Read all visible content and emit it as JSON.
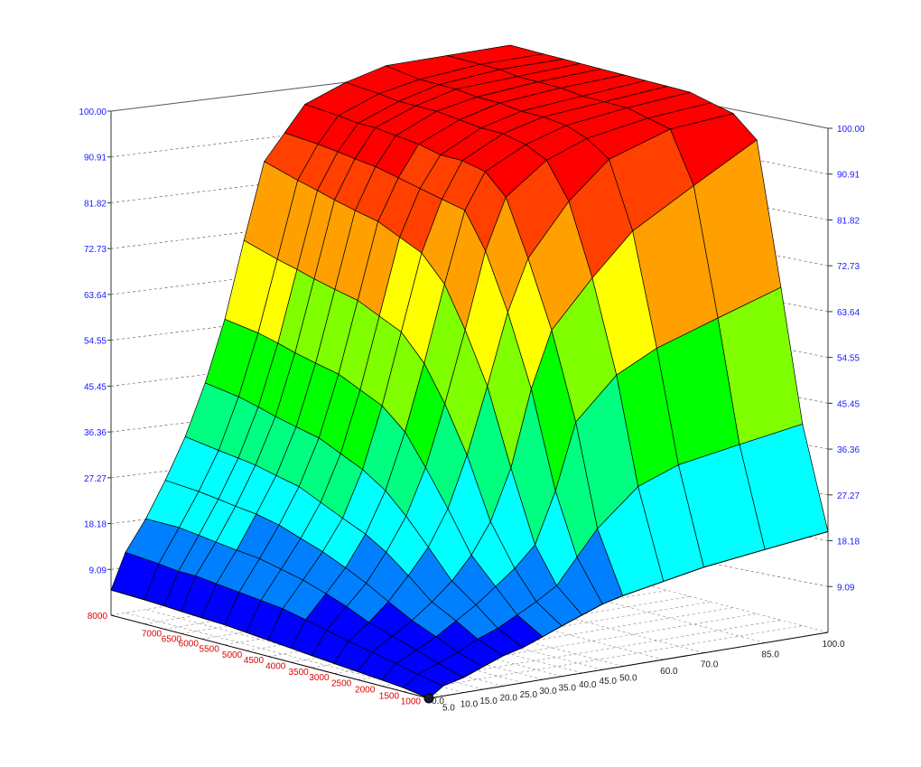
{
  "chart_data": {
    "type": "surface",
    "x_ticks": [
      "0.0",
      "5.0",
      "10.0",
      "15.0",
      "20.0",
      "25.0",
      "30.0",
      "35.0",
      "40.0",
      "45.0",
      "50.0",
      "60.0",
      "70.0",
      "85.0",
      "100.0"
    ],
    "y_ticks": [
      "8000",
      "7000",
      "6500",
      "6000",
      "5500",
      "5000",
      "4500",
      "4000",
      "3500",
      "3000",
      "2500",
      "2000",
      "1500",
      "1000",
      "0.0"
    ],
    "z_ticks": [
      "100.00",
      "90.91",
      "81.82",
      "72.73",
      "63.64",
      "54.55",
      "45.45",
      "36.36",
      "27.27",
      "18.18",
      "9.09"
    ],
    "zlim": [
      0,
      100
    ],
    "x_values": [
      0,
      5,
      10,
      15,
      20,
      25,
      30,
      35,
      40,
      45,
      50,
      60,
      70,
      85,
      100
    ],
    "y_values": [
      0,
      1000,
      1500,
      2000,
      2500,
      3000,
      3500,
      4000,
      4500,
      5000,
      5500,
      6000,
      6500,
      7000,
      8000
    ],
    "z_rows_by_rpm": [
      [
        0.0,
        2.0,
        3.0,
        4.5,
        6.0,
        7.0,
        8.5,
        10.0,
        11.5,
        13.0,
        14.0,
        15.5,
        17.0,
        18.5,
        20.0
      ],
      [
        0.8,
        3.0,
        4.5,
        6.0,
        8.0,
        9.5,
        11.5,
        13.5,
        16.0,
        21.0,
        26.0,
        33.0,
        36.0,
        38.0,
        40.0
      ],
      [
        1.2,
        4.0,
        6.0,
        8.0,
        10.5,
        13.0,
        16.0,
        19.0,
        23.0,
        33.0,
        46.0,
        54.0,
        58.0,
        62.0,
        66.0
      ],
      [
        1.6,
        5.0,
        7.5,
        10.0,
        13.0,
        16.5,
        21.0,
        27.0,
        37.0,
        52.0,
        63.0,
        72.0,
        80.0,
        87.0,
        94.0
      ],
      [
        2.0,
        6.0,
        9.0,
        12.5,
        17.0,
        22.0,
        29.0,
        39.0,
        52.0,
        66.0,
        76.0,
        86.0,
        93.0,
        97.0,
        98.0
      ],
      [
        2.4,
        7.0,
        11.0,
        15.0,
        20.5,
        27.0,
        36.0,
        48.0,
        62.0,
        77.0,
        87.0,
        93.0,
        96.0,
        98.0,
        99.0
      ],
      [
        2.8,
        8.0,
        12.5,
        17.0,
        23.0,
        31.0,
        42.0,
        55.0,
        70.0,
        84.0,
        91.0,
        95.0,
        97.5,
        99.0,
        100.0
      ],
      [
        3.2,
        9.0,
        14.0,
        19.0,
        25.0,
        34.0,
        46.0,
        60.0,
        75.0,
        85.0,
        92.0,
        96.0,
        98.0,
        99.0,
        100.0
      ],
      [
        3.6,
        9.5,
        15.0,
        20.5,
        27.0,
        36.0,
        48.0,
        62.0,
        77.0,
        86.0,
        92.0,
        96.0,
        98.0,
        99.0,
        100.0
      ],
      [
        4.0,
        10.0,
        16.0,
        22.0,
        29.0,
        38.0,
        50.0,
        64.0,
        79.0,
        87.0,
        93.0,
        96.5,
        98.5,
        99.5,
        100.0
      ],
      [
        4.2,
        10.5,
        16.5,
        23.0,
        30.0,
        39.0,
        51.0,
        65.0,
        80.0,
        88.0,
        93.5,
        97.0,
        98.5,
        99.5,
        100.0
      ],
      [
        4.4,
        11.0,
        17.0,
        23.5,
        31.0,
        40.0,
        52.0,
        66.0,
        81.0,
        88.5,
        94.0,
        97.0,
        99.0,
        99.5,
        100.0
      ],
      [
        4.6,
        11.0,
        17.5,
        24.0,
        31.5,
        41.0,
        53.0,
        67.0,
        82.0,
        89.0,
        94.0,
        97.0,
        99.0,
        100.0,
        100.0
      ],
      [
        4.8,
        11.5,
        18.0,
        24.5,
        32.0,
        42.0,
        54.0,
        68.0,
        83.0,
        89.5,
        94.5,
        97.5,
        99.0,
        100.0,
        100.0
      ],
      [
        5.0,
        12.0,
        18.0,
        25.0,
        33.0,
        43.0,
        55.0,
        70.0,
        85.0,
        90.0,
        95.0,
        98.0,
        100.0,
        100.0,
        100.0
      ]
    ],
    "colormap": [
      "#0000ff",
      "#0080ff",
      "#00ffff",
      "#00ff80",
      "#00ff00",
      "#80ff00",
      "#ffff00",
      "#ffa000",
      "#ff4000",
      "#ff0000"
    ]
  }
}
